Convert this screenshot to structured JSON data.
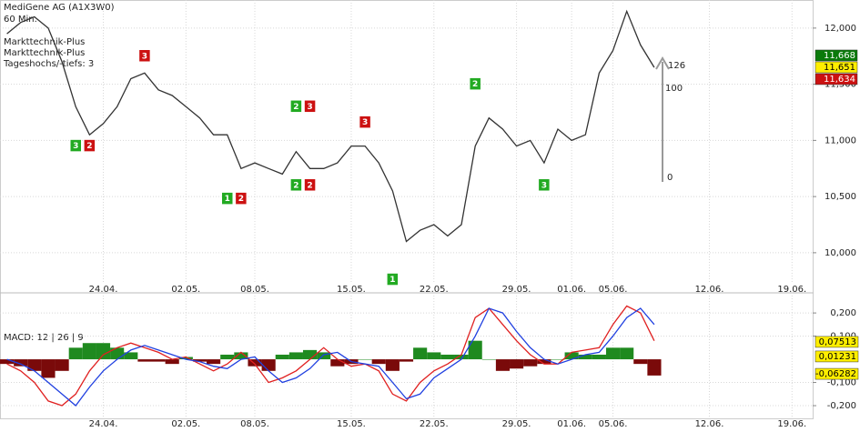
{
  "chart_data": [
    {
      "type": "line",
      "title": "MediGene AG (A1X3W0)",
      "subtitle": "60 Min.",
      "annotations": [
        "Markttechnik-Plus",
        "Markttechnik-Plus",
        "Tageshochs/-tiefs: 3"
      ],
      "arrow_labels": [
        "126",
        "100",
        "0"
      ],
      "categories": [
        null,
        null,
        null,
        null,
        null,
        null,
        null,
        "24.04.",
        null,
        null,
        null,
        null,
        null,
        "02.05.",
        null,
        null,
        null,
        null,
        "08.05.",
        null,
        null,
        null,
        null,
        null,
        null,
        "15.05.",
        null,
        null,
        null,
        null,
        null,
        "22.05.",
        null,
        null,
        null,
        null,
        null,
        "29.05.",
        null,
        null,
        null,
        "01.06.",
        null,
        null,
        "05.06.",
        null,
        null,
        null,
        null,
        null,
        null,
        "12.06.",
        null,
        null,
        null,
        null,
        null,
        "19.06.",
        null
      ],
      "series": [
        {
          "name": "MediGene AG",
          "color": "#333333",
          "values": [
            11.95,
            12.05,
            12.1,
            12.0,
            11.7,
            11.3,
            11.05,
            11.15,
            11.3,
            11.55,
            11.6,
            11.45,
            11.4,
            11.3,
            11.2,
            11.05,
            11.05,
            10.75,
            10.8,
            10.75,
            10.7,
            10.9,
            10.75,
            10.75,
            10.8,
            10.95,
            10.95,
            10.8,
            10.55,
            10.1,
            10.2,
            10.25,
            10.15,
            10.25,
            10.95,
            11.2,
            11.1,
            10.95,
            11.0,
            10.8,
            11.1,
            11.0,
            11.05,
            11.6,
            11.8,
            12.15,
            11.85,
            11.65,
            null,
            null,
            null,
            null,
            null,
            null,
            null,
            null,
            null,
            null,
            null
          ]
        }
      ],
      "markers": [
        {
          "label": "3",
          "index": 5,
          "value": 10.95,
          "color": "#22aa22"
        },
        {
          "label": "2",
          "index": 6,
          "value": 10.95,
          "color": "#cc1111"
        },
        {
          "label": "3",
          "index": 10,
          "value": 11.75,
          "color": "#cc1111"
        },
        {
          "label": "1",
          "index": 16,
          "value": 10.48,
          "color": "#22aa22"
        },
        {
          "label": "2",
          "index": 17,
          "value": 10.48,
          "color": "#cc1111"
        },
        {
          "label": "2",
          "index": 21,
          "value": 11.3,
          "color": "#22aa22"
        },
        {
          "label": "3",
          "index": 22,
          "value": 11.3,
          "color": "#cc1111"
        },
        {
          "label": "2",
          "index": 21,
          "value": 10.6,
          "color": "#22aa22"
        },
        {
          "label": "2",
          "index": 22,
          "value": 10.6,
          "color": "#cc1111"
        },
        {
          "label": "3",
          "index": 26,
          "value": 11.16,
          "color": "#cc1111"
        },
        {
          "label": "1",
          "index": 28,
          "value": 9.76,
          "color": "#22aa22"
        },
        {
          "label": "2",
          "index": 34,
          "value": 11.5,
          "color": "#22aa22"
        },
        {
          "label": "3",
          "index": 39,
          "value": 10.6,
          "color": "#22aa22"
        }
      ],
      "price_labels": [
        {
          "value": 11.668,
          "label": "11,668",
          "color": "#0a7a0a"
        },
        {
          "value": 11.651,
          "label": "11,651",
          "color": "#ffee00"
        },
        {
          "value": 11.634,
          "label": "11,634",
          "color": "#cc1111"
        }
      ],
      "ylim": [
        9.74,
        12.25
      ],
      "yticks": [
        {
          "value": 10,
          "label": "10,000"
        },
        {
          "value": 10.5,
          "label": "10,500"
        },
        {
          "value": 11,
          "label": "11,000"
        },
        {
          "value": 11.5,
          "label": "11,500"
        },
        {
          "value": 12,
          "label": "12,000"
        }
      ],
      "grid": true
    },
    {
      "type": "macd",
      "title": "MACD: 12 | 26 | 9",
      "categories": [
        null,
        null,
        null,
        null,
        null,
        null,
        null,
        "24.04.",
        null,
        null,
        null,
        null,
        null,
        "02.05.",
        null,
        null,
        null,
        null,
        "08.05.",
        null,
        null,
        null,
        null,
        null,
        null,
        "15.05.",
        null,
        null,
        null,
        null,
        null,
        "22.05.",
        null,
        null,
        null,
        null,
        null,
        "29.05.",
        null,
        null,
        null,
        "01.06.",
        null,
        null,
        "05.06.",
        null,
        null,
        null,
        null,
        null,
        null,
        "12.06.",
        null,
        null,
        null,
        null,
        null,
        "19.06.",
        null
      ],
      "histogram": {
        "positive_color": "#1f8a1f",
        "negative_color": "#7a0a0a",
        "values": [
          -0.02,
          -0.03,
          -0.05,
          -0.08,
          -0.05,
          0.05,
          0.07,
          0.07,
          0.05,
          0.03,
          -0.01,
          -0.01,
          -0.02,
          0.01,
          -0.01,
          -0.02,
          0.02,
          0.03,
          -0.03,
          -0.05,
          0.02,
          0.03,
          0.04,
          0.03,
          -0.03,
          -0.02,
          0.0,
          -0.02,
          -0.05,
          -0.01,
          0.05,
          0.03,
          0.02,
          0.02,
          0.08,
          0.0,
          -0.05,
          -0.04,
          -0.03,
          -0.02,
          0.0,
          0.03,
          0.02,
          0.02,
          0.05,
          0.05,
          -0.02,
          -0.07,
          null,
          null,
          null,
          null,
          null,
          null,
          null,
          null,
          null,
          null,
          null
        ]
      },
      "series": [
        {
          "name": "MACD",
          "color": "#e02020",
          "values": [
            -0.02,
            -0.05,
            -0.1,
            -0.18,
            -0.2,
            -0.15,
            -0.05,
            0.02,
            0.05,
            0.07,
            0.05,
            0.03,
            0.0,
            0.01,
            -0.02,
            -0.05,
            -0.02,
            0.03,
            -0.02,
            -0.1,
            -0.08,
            -0.05,
            0.0,
            0.05,
            0.0,
            -0.03,
            -0.02,
            -0.05,
            -0.15,
            -0.18,
            -0.1,
            -0.05,
            -0.02,
            0.02,
            0.18,
            0.22,
            0.15,
            0.08,
            0.02,
            -0.02,
            -0.02,
            0.03,
            0.04,
            0.05,
            0.15,
            0.23,
            0.2,
            0.08,
            null,
            null,
            null,
            null,
            null,
            null,
            null,
            null,
            null,
            null,
            null
          ]
        },
        {
          "name": "Signal",
          "color": "#2040e0",
          "values": [
            0.0,
            -0.02,
            -0.05,
            -0.1,
            -0.15,
            -0.2,
            -0.12,
            -0.05,
            0.0,
            0.04,
            0.06,
            0.04,
            0.02,
            0.0,
            -0.01,
            -0.03,
            -0.04,
            0.0,
            0.01,
            -0.05,
            -0.1,
            -0.08,
            -0.04,
            0.02,
            0.03,
            -0.01,
            -0.02,
            -0.03,
            -0.1,
            -0.17,
            -0.15,
            -0.08,
            -0.04,
            0.0,
            0.1,
            0.22,
            0.2,
            0.12,
            0.05,
            0.0,
            -0.02,
            0.0,
            0.02,
            0.03,
            0.1,
            0.18,
            0.22,
            0.15,
            null,
            null,
            null,
            null,
            null,
            null,
            null,
            null,
            null,
            null,
            null
          ]
        }
      ],
      "value_labels": [
        {
          "value": 0.07513,
          "label": "0,07513",
          "color": "#ffee00"
        },
        {
          "value": 0.01231,
          "label": "0,01231",
          "color": "#ffee00"
        },
        {
          "value": -0.06282,
          "label": "-0,06282",
          "color": "#ffee00"
        }
      ],
      "ylim": [
        -0.247,
        0.275
      ],
      "yticks": [
        {
          "value": 0.2,
          "label": "0,200"
        },
        {
          "value": 0.1,
          "label": "0,100"
        },
        {
          "value": -0.1,
          "label": "-0,100"
        },
        {
          "value": -0.2,
          "label": "-0,200"
        }
      ],
      "grid": true
    }
  ]
}
